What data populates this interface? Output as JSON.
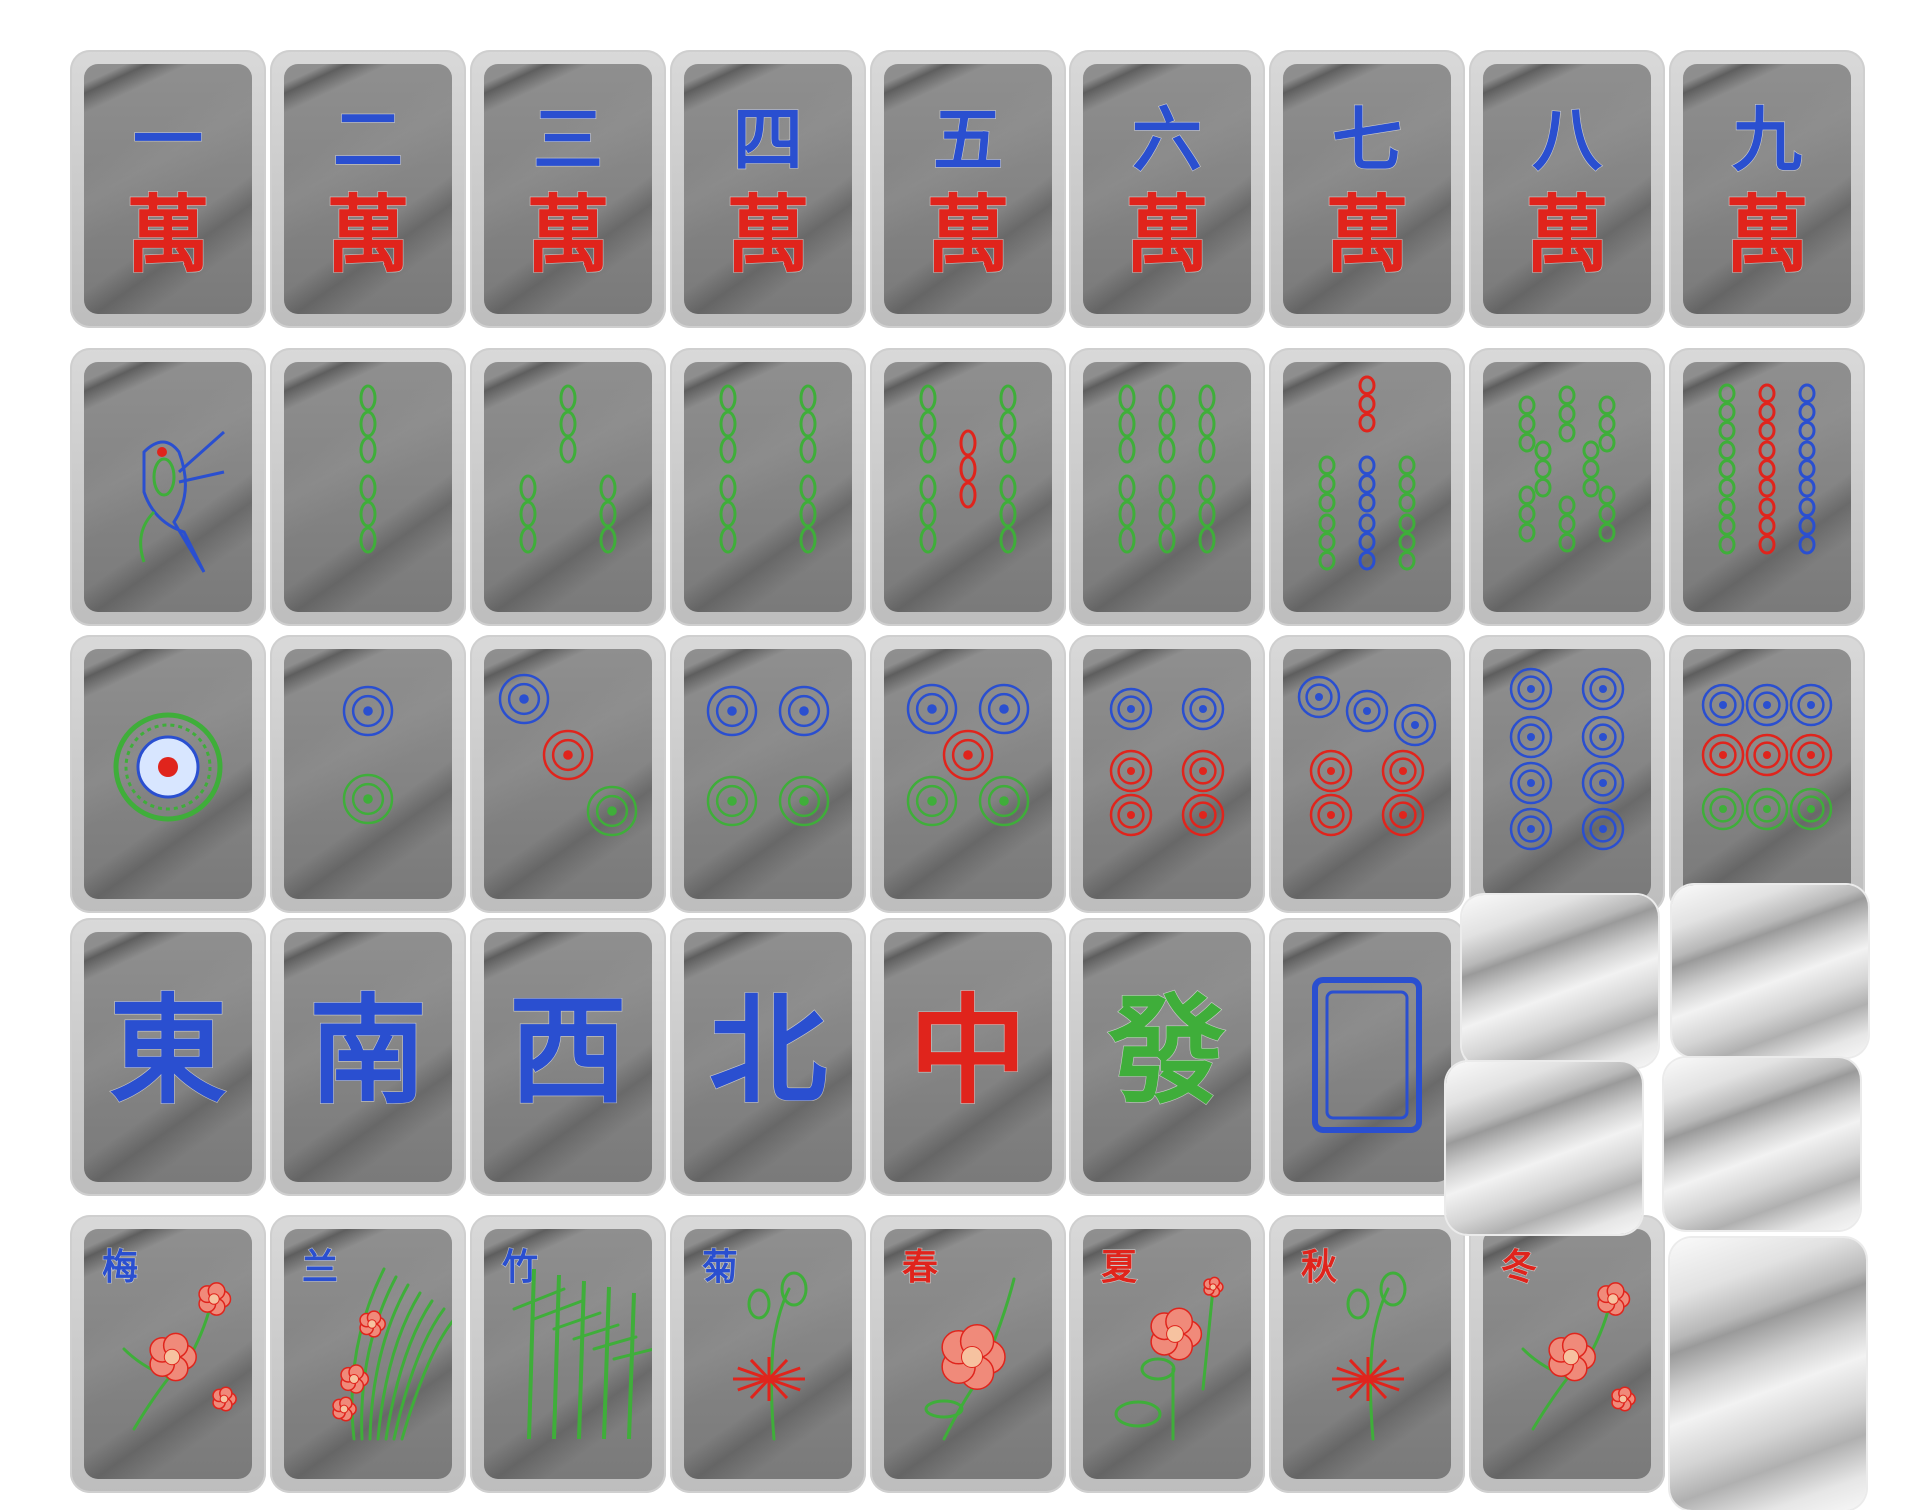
{
  "board": {
    "rows": [
      {
        "name": "characters",
        "tiles": [
          {
            "id": "char-1",
            "kind": "char",
            "numeral": "一",
            "suit": "萬"
          },
          {
            "id": "char-2",
            "kind": "char",
            "numeral": "二",
            "suit": "萬"
          },
          {
            "id": "char-3",
            "kind": "char",
            "numeral": "三",
            "suit": "萬"
          },
          {
            "id": "char-4",
            "kind": "char",
            "numeral": "四",
            "suit": "萬"
          },
          {
            "id": "char-5",
            "kind": "char",
            "numeral": "五",
            "suit": "萬"
          },
          {
            "id": "char-6",
            "kind": "char",
            "numeral": "六",
            "suit": "萬"
          },
          {
            "id": "char-7",
            "kind": "char",
            "numeral": "七",
            "suit": "萬"
          },
          {
            "id": "char-8",
            "kind": "char",
            "numeral": "八",
            "suit": "萬"
          },
          {
            "id": "char-9",
            "kind": "char",
            "numeral": "九",
            "suit": "萬"
          }
        ]
      },
      {
        "name": "bamboos",
        "tiles": [
          {
            "id": "bamboo-1",
            "kind": "bird",
            "value": 1
          },
          {
            "id": "bamboo-2",
            "kind": "bamboo",
            "value": 2
          },
          {
            "id": "bamboo-3",
            "kind": "bamboo",
            "value": 3
          },
          {
            "id": "bamboo-4",
            "kind": "bamboo",
            "value": 4
          },
          {
            "id": "bamboo-5",
            "kind": "bamboo",
            "value": 5
          },
          {
            "id": "bamboo-6",
            "kind": "bamboo",
            "value": 6
          },
          {
            "id": "bamboo-7",
            "kind": "bamboo",
            "value": 7
          },
          {
            "id": "bamboo-8",
            "kind": "bamboo",
            "value": 8
          },
          {
            "id": "bamboo-9",
            "kind": "bamboo",
            "value": 9
          }
        ]
      },
      {
        "name": "dots",
        "tiles": [
          {
            "id": "dot-1",
            "kind": "bigdot",
            "value": 1
          },
          {
            "id": "dot-2",
            "kind": "dots",
            "value": 2
          },
          {
            "id": "dot-3",
            "kind": "dots",
            "value": 3
          },
          {
            "id": "dot-4",
            "kind": "dots",
            "value": 4
          },
          {
            "id": "dot-5",
            "kind": "dots",
            "value": 5
          },
          {
            "id": "dot-6",
            "kind": "dots",
            "value": 6
          },
          {
            "id": "dot-7",
            "kind": "dots",
            "value": 7
          },
          {
            "id": "dot-8",
            "kind": "dots",
            "value": 8
          },
          {
            "id": "dot-9",
            "kind": "dots",
            "value": 9
          }
        ]
      },
      {
        "name": "honors",
        "tiles": [
          {
            "id": "wind-east",
            "kind": "honor",
            "glyph": "東",
            "color": "#2a4fd0"
          },
          {
            "id": "wind-south",
            "kind": "honor",
            "glyph": "南",
            "color": "#2a4fd0"
          },
          {
            "id": "wind-west",
            "kind": "honor",
            "glyph": "西",
            "color": "#2a4fd0"
          },
          {
            "id": "wind-north",
            "kind": "honor",
            "glyph": "北",
            "color": "#2a4fd0"
          },
          {
            "id": "dragon-red",
            "kind": "honor",
            "glyph": "中",
            "color": "#e0241c"
          },
          {
            "id": "dragon-green",
            "kind": "honor",
            "glyph": "發",
            "color": "#3fae3a"
          },
          {
            "id": "dragon-white",
            "kind": "whitedragon"
          }
        ]
      },
      {
        "name": "flowers-seasons",
        "tiles": [
          {
            "id": "flower-plum",
            "kind": "flower",
            "label": "梅",
            "label_color": "#2a4fd0",
            "plant": "plum"
          },
          {
            "id": "flower-orchid",
            "kind": "flower",
            "label": "兰",
            "label_color": "#2a4fd0",
            "plant": "orchid"
          },
          {
            "id": "flower-bamboo",
            "kind": "flower",
            "label": "竹",
            "label_color": "#2a4fd0",
            "plant": "bamboo"
          },
          {
            "id": "flower-chrysanthemum",
            "kind": "flower",
            "label": "菊",
            "label_color": "#2a4fd0",
            "plant": "chrys"
          },
          {
            "id": "season-spring",
            "kind": "flower",
            "label": "春",
            "label_color": "#e0241c",
            "plant": "peony"
          },
          {
            "id": "season-summer",
            "kind": "flower",
            "label": "夏",
            "label_color": "#e0241c",
            "plant": "lotus"
          },
          {
            "id": "season-autumn",
            "kind": "flower",
            "label": "秋",
            "label_color": "#e0241c",
            "plant": "chrys"
          },
          {
            "id": "season-winter",
            "kind": "flower",
            "label": "冬",
            "label_color": "#e0241c",
            "plant": "plum"
          }
        ]
      }
    ],
    "blank_tiles": 5
  },
  "colors": {
    "blue": "#2a4fd0",
    "red": "#e0241c",
    "green": "#3fae3a"
  }
}
